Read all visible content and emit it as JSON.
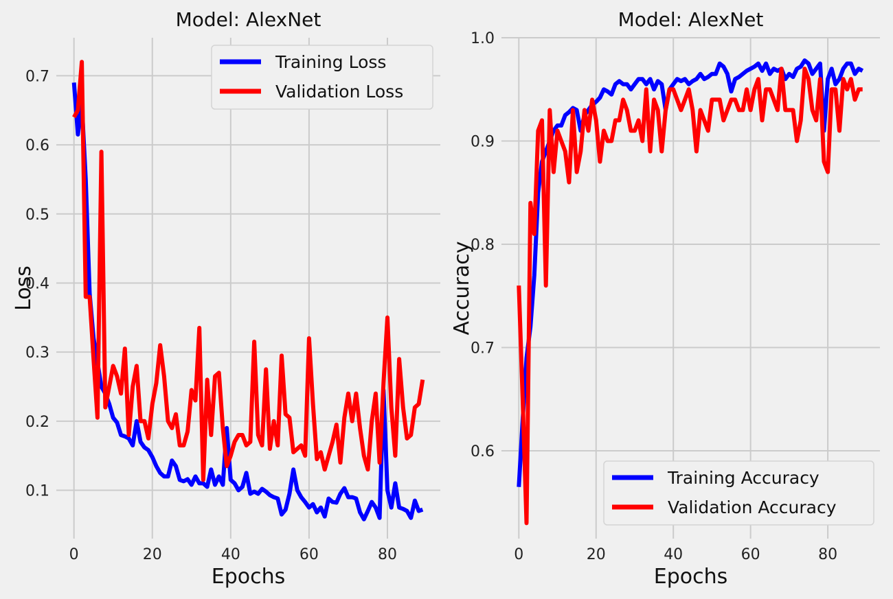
{
  "chart_data": [
    {
      "type": "line",
      "title": "Model: AlexNet",
      "xlabel": "Epochs",
      "ylabel": "Loss",
      "xlim": [
        -4.5,
        93.5
      ],
      "ylim": [
        0.03,
        0.755
      ],
      "xticks": [
        0,
        20,
        40,
        60,
        80
      ],
      "yticks": [
        0.1,
        0.2,
        0.3,
        0.4,
        0.5,
        0.6,
        0.7
      ],
      "tick_decimals": 1,
      "grid": true,
      "legend_position": "top-right",
      "x": [
        0,
        1,
        2,
        3,
        4,
        5,
        6,
        7,
        8,
        9,
        10,
        11,
        12,
        13,
        14,
        15,
        16,
        17,
        18,
        19,
        20,
        21,
        22,
        23,
        24,
        25,
        26,
        27,
        28,
        29,
        30,
        31,
        32,
        33,
        34,
        35,
        36,
        37,
        38,
        39,
        40,
        41,
        42,
        43,
        44,
        45,
        46,
        47,
        48,
        49,
        50,
        51,
        52,
        53,
        54,
        55,
        56,
        57,
        58,
        59,
        60,
        61,
        62,
        63,
        64,
        65,
        66,
        67,
        68,
        69,
        70,
        71,
        72,
        73,
        74,
        75,
        76,
        77,
        78,
        79,
        80,
        81,
        82,
        83,
        84,
        85,
        86,
        87,
        88,
        89
      ],
      "series": [
        {
          "name": "Training Loss",
          "color": "#0000ff",
          "values": [
            0.69,
            0.615,
            0.66,
            0.55,
            0.385,
            0.32,
            0.285,
            0.25,
            0.24,
            0.225,
            0.205,
            0.198,
            0.18,
            0.178,
            0.175,
            0.165,
            0.2,
            0.17,
            0.162,
            0.158,
            0.148,
            0.135,
            0.125,
            0.12,
            0.12,
            0.143,
            0.135,
            0.115,
            0.113,
            0.116,
            0.108,
            0.12,
            0.11,
            0.11,
            0.105,
            0.13,
            0.108,
            0.12,
            0.108,
            0.19,
            0.115,
            0.11,
            0.1,
            0.105,
            0.125,
            0.095,
            0.098,
            0.095,
            0.102,
            0.098,
            0.093,
            0.09,
            0.088,
            0.065,
            0.072,
            0.095,
            0.13,
            0.1,
            0.09,
            0.083,
            0.075,
            0.08,
            0.068,
            0.075,
            0.062,
            0.088,
            0.083,
            0.082,
            0.095,
            0.103,
            0.09,
            0.09,
            0.088,
            0.068,
            0.058,
            0.07,
            0.083,
            0.075,
            0.06,
            0.245,
            0.1,
            0.075,
            0.11,
            0.075,
            0.073,
            0.07,
            0.06,
            0.085,
            0.07,
            0.072
          ]
        },
        {
          "name": "Validation Loss",
          "color": "#ff0000",
          "values": [
            0.64,
            0.65,
            0.72,
            0.38,
            0.38,
            0.29,
            0.205,
            0.59,
            0.22,
            0.25,
            0.28,
            0.265,
            0.24,
            0.305,
            0.18,
            0.25,
            0.28,
            0.2,
            0.2,
            0.175,
            0.225,
            0.255,
            0.31,
            0.265,
            0.2,
            0.19,
            0.21,
            0.165,
            0.165,
            0.185,
            0.245,
            0.23,
            0.335,
            0.115,
            0.26,
            0.18,
            0.265,
            0.27,
            0.19,
            0.135,
            0.15,
            0.17,
            0.18,
            0.18,
            0.165,
            0.17,
            0.315,
            0.18,
            0.165,
            0.275,
            0.16,
            0.2,
            0.165,
            0.295,
            0.21,
            0.205,
            0.155,
            0.16,
            0.165,
            0.15,
            0.32,
            0.225,
            0.145,
            0.155,
            0.13,
            0.15,
            0.17,
            0.195,
            0.14,
            0.205,
            0.24,
            0.2,
            0.24,
            0.19,
            0.15,
            0.13,
            0.2,
            0.24,
            0.14,
            0.255,
            0.35,
            0.22,
            0.15,
            0.29,
            0.22,
            0.175,
            0.18,
            0.22,
            0.225,
            0.26
          ]
        }
      ]
    },
    {
      "type": "line",
      "title": "Model: AlexNet",
      "xlabel": "Epochs",
      "ylabel": "Accuracy",
      "xlim": [
        -4.5,
        93.5
      ],
      "ylim": [
        0.515,
        1.0
      ],
      "xticks": [
        0,
        20,
        40,
        60,
        80
      ],
      "yticks": [
        0.6,
        0.7,
        0.8,
        0.9,
        1.0
      ],
      "tick_decimals": 1,
      "grid": true,
      "legend_position": "bottom-right",
      "x": [
        0,
        1,
        2,
        3,
        4,
        5,
        6,
        7,
        8,
        9,
        10,
        11,
        12,
        13,
        14,
        15,
        16,
        17,
        18,
        19,
        20,
        21,
        22,
        23,
        24,
        25,
        26,
        27,
        28,
        29,
        30,
        31,
        32,
        33,
        34,
        35,
        36,
        37,
        38,
        39,
        40,
        41,
        42,
        43,
        44,
        45,
        46,
        47,
        48,
        49,
        50,
        51,
        52,
        53,
        54,
        55,
        56,
        57,
        58,
        59,
        60,
        61,
        62,
        63,
        64,
        65,
        66,
        67,
        68,
        69,
        70,
        71,
        72,
        73,
        74,
        75,
        76,
        77,
        78,
        79,
        80,
        81,
        82,
        83,
        84,
        85,
        86,
        87,
        88,
        89
      ],
      "series": [
        {
          "name": "Training Accuracy",
          "color": "#0000ff",
          "values": [
            0.565,
            0.63,
            0.69,
            0.72,
            0.77,
            0.85,
            0.88,
            0.89,
            0.9,
            0.91,
            0.915,
            0.915,
            0.925,
            0.928,
            0.932,
            0.93,
            0.91,
            0.925,
            0.93,
            0.935,
            0.938,
            0.942,
            0.95,
            0.948,
            0.945,
            0.955,
            0.958,
            0.955,
            0.955,
            0.95,
            0.955,
            0.96,
            0.96,
            0.955,
            0.96,
            0.95,
            0.958,
            0.955,
            0.93,
            0.95,
            0.955,
            0.96,
            0.958,
            0.96,
            0.955,
            0.958,
            0.96,
            0.965,
            0.96,
            0.962,
            0.965,
            0.965,
            0.975,
            0.972,
            0.965,
            0.948,
            0.96,
            0.962,
            0.965,
            0.968,
            0.97,
            0.972,
            0.975,
            0.968,
            0.975,
            0.965,
            0.97,
            0.968,
            0.97,
            0.96,
            0.965,
            0.962,
            0.97,
            0.972,
            0.978,
            0.975,
            0.965,
            0.97,
            0.975,
            0.91,
            0.96,
            0.97,
            0.955,
            0.96,
            0.97,
            0.975,
            0.975,
            0.965,
            0.97,
            0.968
          ]
        },
        {
          "name": "Validation Accuracy",
          "color": "#ff0000",
          "values": [
            0.76,
            0.65,
            0.53,
            0.84,
            0.81,
            0.91,
            0.92,
            0.76,
            0.93,
            0.87,
            0.91,
            0.9,
            0.89,
            0.86,
            0.93,
            0.87,
            0.89,
            0.93,
            0.91,
            0.94,
            0.92,
            0.88,
            0.91,
            0.9,
            0.9,
            0.92,
            0.92,
            0.94,
            0.93,
            0.91,
            0.91,
            0.92,
            0.9,
            0.95,
            0.89,
            0.94,
            0.93,
            0.89,
            0.93,
            0.95,
            0.95,
            0.94,
            0.93,
            0.94,
            0.95,
            0.93,
            0.89,
            0.93,
            0.92,
            0.91,
            0.94,
            0.94,
            0.94,
            0.92,
            0.93,
            0.94,
            0.94,
            0.93,
            0.93,
            0.95,
            0.93,
            0.95,
            0.96,
            0.92,
            0.95,
            0.95,
            0.94,
            0.93,
            0.97,
            0.93,
            0.93,
            0.93,
            0.9,
            0.92,
            0.97,
            0.96,
            0.93,
            0.92,
            0.96,
            0.88,
            0.87,
            0.95,
            0.95,
            0.91,
            0.96,
            0.95,
            0.96,
            0.94,
            0.95,
            0.95
          ]
        }
      ]
    }
  ]
}
